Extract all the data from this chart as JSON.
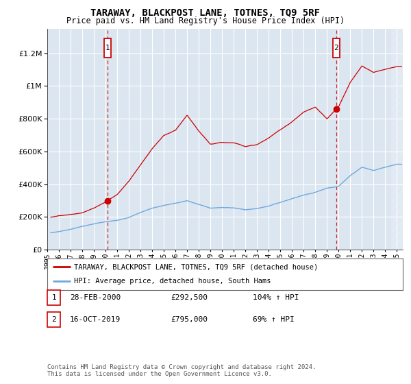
{
  "title": "TARAWAY, BLACKPOST LANE, TOTNES, TQ9 5RF",
  "subtitle": "Price paid vs. HM Land Registry's House Price Index (HPI)",
  "plot_bg_color": "#dce6f1",
  "ytick_values": [
    0,
    200000,
    400000,
    600000,
    800000,
    1000000,
    1200000
  ],
  "ylim": [
    0,
    1350000
  ],
  "xlim_start": 1995.3,
  "xlim_end": 2025.5,
  "x_years": [
    1995,
    1996,
    1997,
    1998,
    1999,
    2000,
    2001,
    2002,
    2003,
    2004,
    2005,
    2006,
    2007,
    2008,
    2009,
    2010,
    2011,
    2012,
    2013,
    2014,
    2015,
    2016,
    2017,
    2018,
    2019,
    2020,
    2021,
    2022,
    2023,
    2024,
    2025
  ],
  "hpi_color": "#6fa8dc",
  "property_color": "#cc0000",
  "legend_label_property": "TARAWAY, BLACKPOST LANE, TOTNES, TQ9 5RF (detached house)",
  "legend_label_hpi": "HPI: Average price, detached house, South Hams",
  "transaction1_x": 2000.167,
  "transaction1_label": "1",
  "transaction1_date": "28-FEB-2000",
  "transaction1_price": "£292,500",
  "transaction1_pct": "104% ↑ HPI",
  "transaction2_x": 2019.792,
  "transaction2_label": "2",
  "transaction2_date": "16-OCT-2019",
  "transaction2_price": "£795,000",
  "transaction2_pct": "69% ↑ HPI",
  "footer": "Contains HM Land Registry data © Crown copyright and database right 2024.\nThis data is licensed under the Open Government Licence v3.0.",
  "hatch_start": 2024.5,
  "hpi_base": [
    100000,
    110000,
    125000,
    143000,
    158000,
    170000,
    178000,
    198000,
    228000,
    255000,
    272000,
    285000,
    300000,
    278000,
    255000,
    260000,
    258000,
    248000,
    255000,
    272000,
    295000,
    318000,
    340000,
    358000,
    385000,
    395000,
    460000,
    510000,
    490000,
    510000,
    530000
  ],
  "prop_base": [
    195000,
    205000,
    215000,
    225000,
    255000,
    292500,
    340000,
    420000,
    520000,
    620000,
    700000,
    730000,
    820000,
    720000,
    640000,
    650000,
    650000,
    630000,
    640000,
    680000,
    730000,
    780000,
    840000,
    870000,
    795000,
    870000,
    1020000,
    1120000,
    1080000,
    1100000,
    1120000
  ],
  "base_years": [
    1995,
    1996,
    1997,
    1998,
    1999,
    2000,
    2001,
    2002,
    2003,
    2004,
    2005,
    2006,
    2007,
    2008,
    2009,
    2010,
    2011,
    2012,
    2013,
    2014,
    2015,
    2016,
    2017,
    2018,
    2019,
    2020,
    2021,
    2022,
    2023,
    2024,
    2025
  ]
}
